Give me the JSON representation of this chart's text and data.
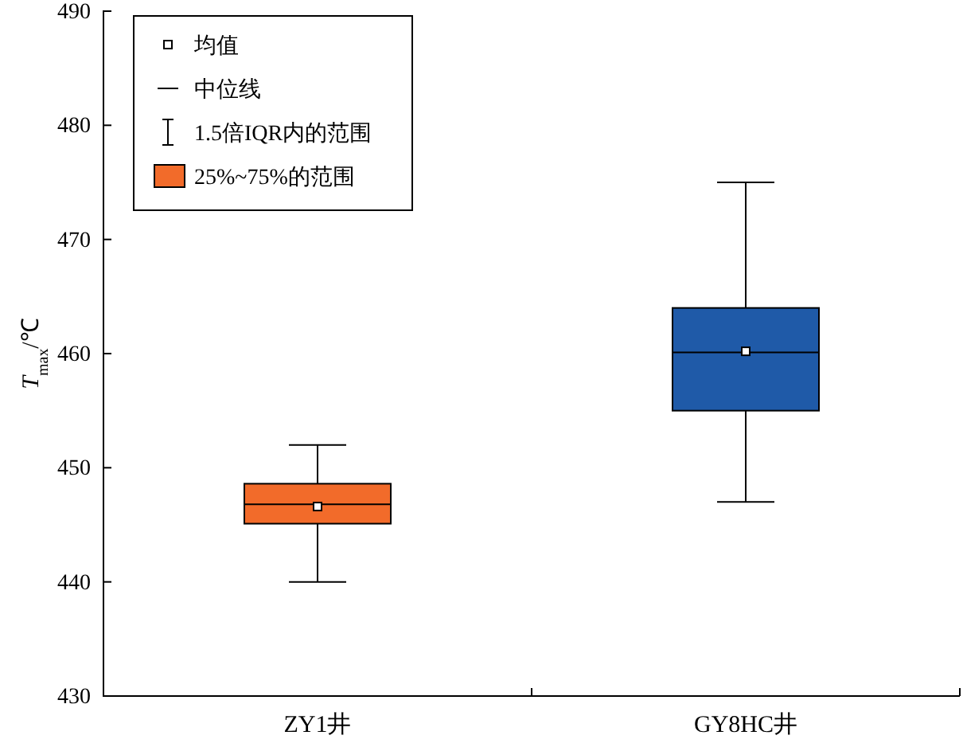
{
  "chart_data": {
    "type": "box",
    "categories": [
      "ZY1井",
      "GY8HC井"
    ],
    "boxes": [
      {
        "low": 440,
        "q1": 445.1,
        "median": 446.8,
        "q3": 448.6,
        "high": 452,
        "mean": 446.6
      },
      {
        "low": 447,
        "q1": 455,
        "median": 460.1,
        "q3": 464,
        "high": 475,
        "mean": 460.2
      }
    ],
    "colors": [
      "#f26b2a",
      "#1f5aa8"
    ],
    "ylabel": "T$_{max}$/℃",
    "ylim": [
      430,
      490
    ],
    "yticks": [
      430,
      440,
      450,
      460,
      470,
      480,
      490
    ],
    "annotations": [
      "均值",
      "中位线",
      "1.5倍IQR内的范围",
      "25%~75%的范围"
    ]
  }
}
